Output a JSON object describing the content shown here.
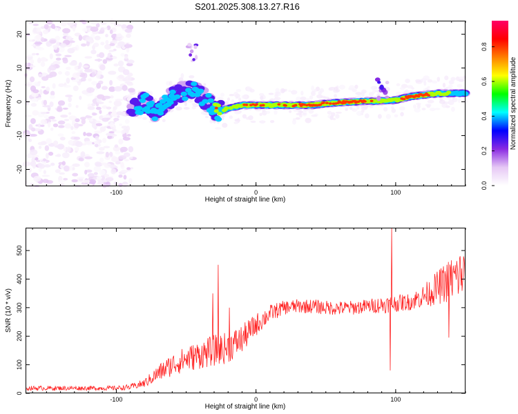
{
  "figure_title": "S201.2025.308.13.27.R16",
  "chart_data": [
    {
      "type": "heatmap",
      "name": "spectrogram",
      "xlabel": "Height of straight line (km)",
      "ylabel": "Frequency (Hz)",
      "xlim": [
        -165,
        150
      ],
      "ylim": [
        -25,
        24
      ],
      "xticks": [
        -100,
        0,
        100
      ],
      "xtick_labels": [
        "-100",
        "0",
        "100"
      ],
      "yticks": [
        -20,
        -10,
        0,
        10,
        20
      ],
      "ytick_labels": [
        "-20",
        "-10",
        "0",
        "10",
        "20"
      ],
      "colorbar": {
        "label": "Normalized spectral amplitude",
        "range": [
          0,
          0.95
        ],
        "ticks": [
          0.0,
          0.2,
          0.4,
          0.6,
          0.8
        ],
        "tick_labels": [
          "0.0",
          "0.2",
          "0.4",
          "0.6",
          "0.8"
        ],
        "colors": [
          "#ffffff",
          "#e6c8f5",
          "#8a2be2",
          "#0000ff",
          "#00ffff",
          "#00ff00",
          "#ffff00",
          "#ff8000",
          "#ff0000",
          "#ff0066"
        ]
      },
      "noise_region_x": [
        -165,
        -88
      ],
      "signal_ridge": {
        "x": [
          -90,
          -80,
          -72,
          -62,
          -52,
          -42,
          -35,
          -28,
          -20,
          -10,
          0,
          10,
          20,
          30,
          40,
          50,
          60,
          70,
          80,
          90,
          100,
          110,
          120,
          130,
          140,
          150
        ],
        "freq": [
          -3,
          0,
          -3,
          1,
          3,
          3,
          0,
          -3,
          -2,
          -1,
          -1,
          -1,
          -1,
          -1,
          -1,
          -0.5,
          -0.2,
          0,
          0.2,
          0.3,
          0.5,
          1.5,
          2,
          2.5,
          2.5,
          2.5
        ],
        "amplitude": [
          0.3,
          0.4,
          0.5,
          0.4,
          0.35,
          0.4,
          0.3,
          0.7,
          0.5,
          0.7,
          0.8,
          0.6,
          0.7,
          0.75,
          0.9,
          0.7,
          0.85,
          0.9,
          0.7,
          0.65,
          0.6,
          0.9,
          0.85,
          0.55,
          0.5,
          0.45
        ]
      },
      "features": [
        {
          "x": -45,
          "freq": 15,
          "amplitude": 0.25
        },
        {
          "x": 90,
          "freq": 4,
          "amplitude": 0.3
        }
      ]
    },
    {
      "type": "line",
      "name": "snr",
      "xlabel": "Height of straight line (km)",
      "ylabel": "SNR (10 * v/v)",
      "xlim": [
        -165,
        150
      ],
      "ylim": [
        0,
        580
      ],
      "xticks": [
        -100,
        0,
        100
      ],
      "xtick_labels": [
        "-100",
        "0",
        "100"
      ],
      "yticks": [
        0,
        100,
        200,
        300,
        400,
        500
      ],
      "ytick_labels": [
        "0",
        "100",
        "200",
        "300",
        "400",
        "500"
      ],
      "color": "#ff2020",
      "trend": {
        "x": [
          -165,
          -100,
          -90,
          -80,
          -70,
          -60,
          -50,
          -40,
          -30,
          -20,
          -10,
          0,
          10,
          20,
          30,
          40,
          50,
          60,
          70,
          80,
          90,
          100,
          110,
          120,
          130,
          140,
          150
        ],
        "y": [
          18,
          18,
          22,
          35,
          70,
          100,
          120,
          135,
          150,
          160,
          190,
          240,
          280,
          300,
          305,
          305,
          300,
          298,
          300,
          305,
          310,
          315,
          320,
          340,
          370,
          400,
          420
        ],
        "spread": [
          8,
          8,
          10,
          15,
          30,
          40,
          45,
          50,
          55,
          55,
          50,
          40,
          30,
          25,
          25,
          25,
          25,
          25,
          25,
          25,
          30,
          30,
          30,
          40,
          60,
          80,
          90
        ]
      },
      "spikes": [
        {
          "x": -27,
          "y": 450
        },
        {
          "x": -31,
          "y": 350
        },
        {
          "x": -19,
          "y": 300
        },
        {
          "x": 97,
          "y": 580
        },
        {
          "x": 96,
          "y": 80
        },
        {
          "x": 138,
          "y": 195
        },
        {
          "x": 146,
          "y": 480
        }
      ]
    }
  ]
}
